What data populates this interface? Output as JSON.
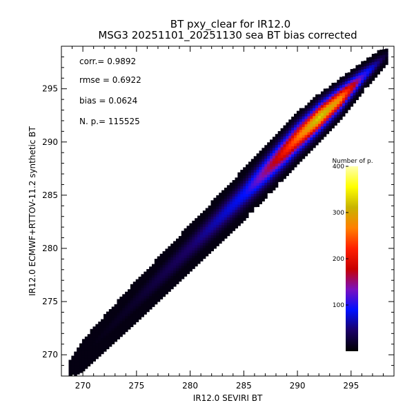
{
  "chart_data": {
    "type": "heatmap",
    "title": "BT pxy_clear for IR12.0",
    "subtitle": "MSG3 20251101_20251130 sea BT bias corrected",
    "xlabel": "IR12.0 SEVIRI BT",
    "ylabel": "IR12.0 ECMWF+RTTOV-11.2 synthetic BT",
    "xlim": [
      268,
      299
    ],
    "ylim": [
      268,
      299
    ],
    "xticks": [
      270,
      275,
      280,
      285,
      290,
      295
    ],
    "yticks": [
      270,
      275,
      280,
      285,
      290,
      295
    ],
    "grid": false,
    "stats": [
      {
        "label": "corr.=",
        "value": "0.9892"
      },
      {
        "label": "rmse =",
        "value": "0.6922"
      },
      {
        "label": "bias =",
        "value": "0.0624"
      },
      {
        "label": "N. p.=",
        "value": "115525"
      }
    ],
    "colorbar": {
      "title": "Number of p.",
      "range": [
        0,
        400
      ],
      "ticks": [
        100,
        200,
        300,
        400
      ],
      "stops": [
        "#000000",
        "#1a0066",
        "#0010ff",
        "#7a10c0",
        "#c80000",
        "#ff2000",
        "#ff8000",
        "#c8b400",
        "#ffff00",
        "#ffffb0"
      ]
    },
    "density_ridge": {
      "center_x": [
        268.8,
        270,
        275,
        280,
        285,
        288,
        290,
        292,
        294,
        296,
        298.3
      ],
      "center_y": [
        268.7,
        270.0,
        275.1,
        280.1,
        285.1,
        288.3,
        290.4,
        292.3,
        294.1,
        296.1,
        298.2
      ],
      "half_width": [
        0.5,
        0.9,
        1.2,
        1.35,
        1.5,
        1.55,
        1.5,
        1.4,
        1.2,
        0.9,
        0.5
      ],
      "peak_count": [
        2,
        6,
        20,
        45,
        90,
        180,
        260,
        330,
        280,
        120,
        20
      ]
    }
  }
}
